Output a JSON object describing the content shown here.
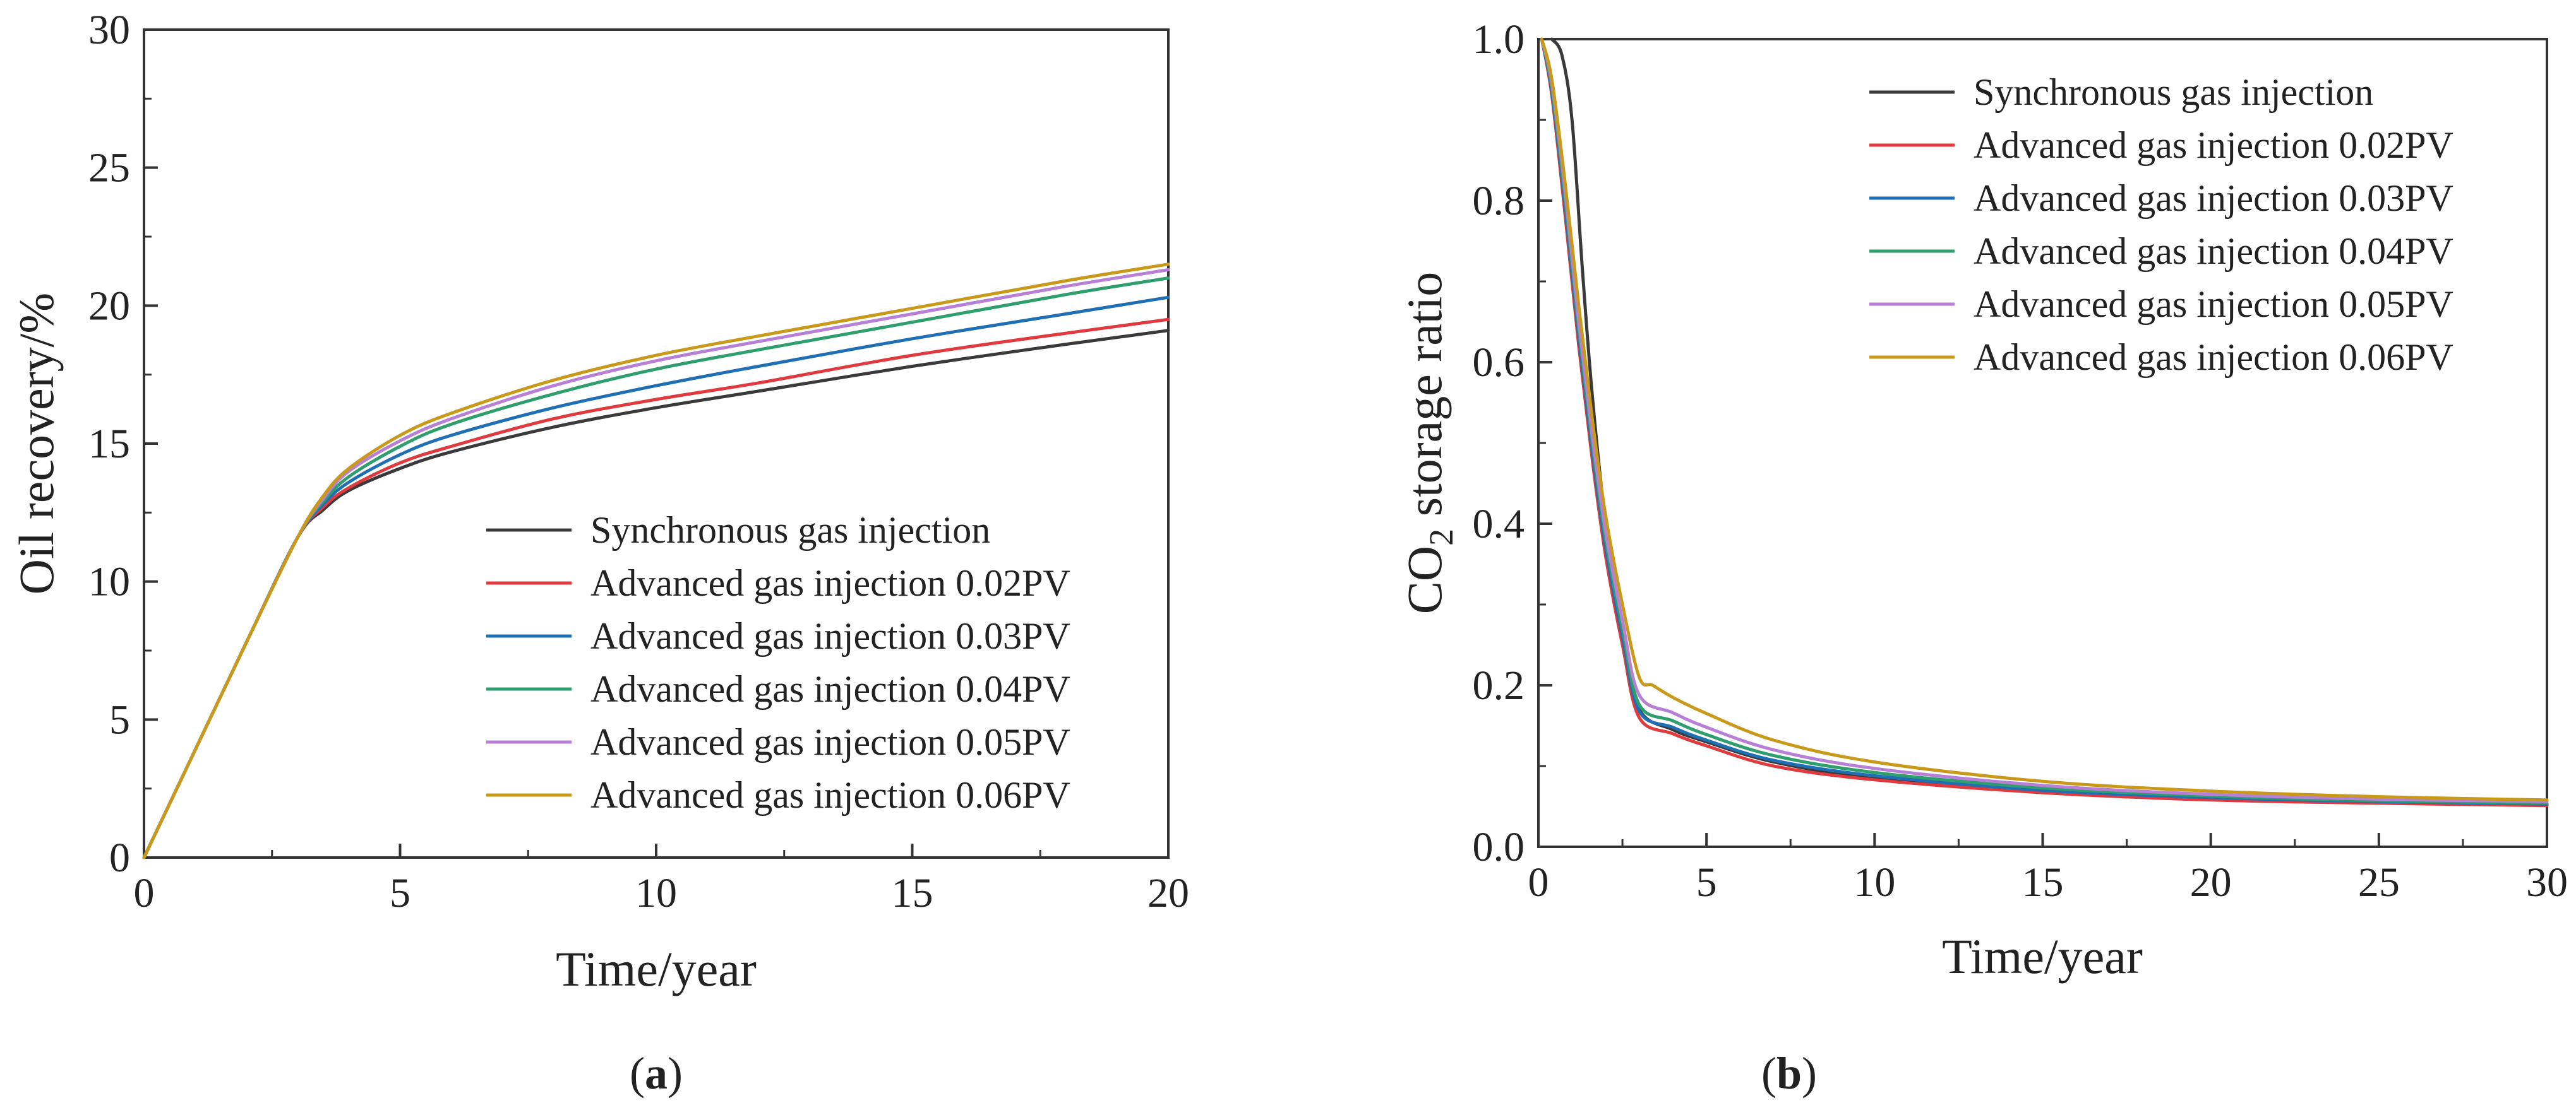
{
  "chart_data": [
    {
      "type": "line",
      "panel_label": "(a)",
      "panel_letter": "a",
      "xlabel": "Time/year",
      "ylabel": "Oil recovery/%",
      "xlim": [
        0,
        20
      ],
      "ylim": [
        0,
        30
      ],
      "xticks": [
        0,
        5,
        10,
        15,
        20
      ],
      "yticks": [
        0,
        5,
        10,
        15,
        20,
        25,
        30
      ],
      "legend_position": "bottom-right",
      "grid": false,
      "series": [
        {
          "name": "Synchronous gas injection",
          "color": "#3a3a3a",
          "x": [
            0,
            1,
            2,
            3,
            3.5,
            4,
            5,
            6,
            8,
            10,
            12,
            15,
            18,
            20
          ],
          "y": [
            0,
            3.9,
            7.8,
            11.6,
            12.6,
            13.3,
            14.1,
            14.7,
            15.6,
            16.3,
            16.9,
            17.8,
            18.6,
            19.1
          ]
        },
        {
          "name": "Advanced gas injection 0.02PV",
          "color": "#e0393e",
          "x": [
            0,
            1,
            2,
            3,
            3.5,
            4,
            5,
            6,
            8,
            10,
            12,
            15,
            18,
            20
          ],
          "y": [
            0,
            3.9,
            7.8,
            11.6,
            12.7,
            13.4,
            14.3,
            14.9,
            15.9,
            16.6,
            17.2,
            18.2,
            19.0,
            19.5
          ]
        },
        {
          "name": "Advanced gas injection 0.03PV",
          "color": "#1f6fb4",
          "x": [
            0,
            1,
            2,
            3,
            3.5,
            4,
            5,
            6,
            8,
            10,
            12,
            15,
            18,
            20
          ],
          "y": [
            0,
            3.9,
            7.8,
            11.6,
            12.8,
            13.6,
            14.6,
            15.3,
            16.3,
            17.1,
            17.8,
            18.8,
            19.7,
            20.3
          ]
        },
        {
          "name": "Advanced gas injection 0.04PV",
          "color": "#2e9e6e",
          "x": [
            0,
            1,
            2,
            3,
            3.5,
            4,
            5,
            6,
            8,
            10,
            12,
            15,
            18,
            20
          ],
          "y": [
            0,
            3.9,
            7.8,
            11.6,
            12.9,
            13.8,
            14.9,
            15.7,
            16.8,
            17.7,
            18.4,
            19.4,
            20.4,
            21.0
          ]
        },
        {
          "name": "Advanced gas injection 0.05PV",
          "color": "#b77fd6",
          "x": [
            0,
            1,
            2,
            3,
            3.5,
            4,
            5,
            6,
            8,
            10,
            12,
            15,
            18,
            20
          ],
          "y": [
            0,
            3.9,
            7.8,
            11.6,
            13.0,
            14.0,
            15.1,
            15.9,
            17.1,
            18.0,
            18.7,
            19.7,
            20.7,
            21.3
          ]
        },
        {
          "name": "Advanced gas injection 0.06PV",
          "color": "#c99a1a",
          "x": [
            0,
            1,
            2,
            3,
            3.5,
            4,
            5,
            6,
            8,
            10,
            12,
            15,
            18,
            20
          ],
          "y": [
            0,
            3.9,
            7.8,
            11.6,
            13.1,
            14.1,
            15.3,
            16.1,
            17.3,
            18.2,
            18.9,
            19.9,
            20.9,
            21.5
          ]
        }
      ]
    },
    {
      "type": "line",
      "panel_label": "(b)",
      "panel_letter": "b",
      "xlabel": "Time/year",
      "ylabel_prefix": "CO",
      "ylabel_sub": "2",
      "ylabel_suffix": " storage ratio",
      "xlim": [
        0,
        30
      ],
      "ylim": [
        0,
        1.0
      ],
      "xticks": [
        0,
        5,
        10,
        15,
        20,
        25,
        30
      ],
      "yticks": [
        0.0,
        0.2,
        0.4,
        0.6,
        0.8,
        1.0
      ],
      "ytick_labels": [
        "0.0",
        "0.2",
        "0.4",
        "0.6",
        "0.8",
        "1.0"
      ],
      "legend_position": "top-right",
      "grid": false,
      "series": [
        {
          "name": "Synchronous gas injection",
          "color": "#3a3a3a",
          "x": [
            0.4,
            0.7,
            1.0,
            1.3,
            1.6,
            2.0,
            2.5,
            3.0,
            4,
            5,
            7,
            10,
            15,
            20,
            25,
            30
          ],
          "y": [
            1.0,
            0.98,
            0.9,
            0.72,
            0.56,
            0.4,
            0.26,
            0.17,
            0.145,
            0.13,
            0.105,
            0.085,
            0.068,
            0.06,
            0.055,
            0.052
          ]
        },
        {
          "name": "Advanced gas injection 0.02PV",
          "color": "#e0393e",
          "x": [
            0.1,
            0.4,
            0.8,
            1.2,
            1.6,
            2.0,
            2.5,
            3.0,
            4,
            5,
            7,
            10,
            15,
            20,
            25,
            30
          ],
          "y": [
            1.0,
            0.93,
            0.78,
            0.62,
            0.48,
            0.36,
            0.25,
            0.16,
            0.14,
            0.125,
            0.1,
            0.083,
            0.067,
            0.058,
            0.054,
            0.051
          ]
        },
        {
          "name": "Advanced gas injection 0.03PV",
          "color": "#1f6fb4",
          "x": [
            0.1,
            0.4,
            0.8,
            1.2,
            1.6,
            2.0,
            2.5,
            3.0,
            4,
            5,
            7,
            10,
            15,
            20,
            25,
            30
          ],
          "y": [
            1.0,
            0.935,
            0.79,
            0.63,
            0.49,
            0.37,
            0.26,
            0.168,
            0.148,
            0.132,
            0.107,
            0.088,
            0.07,
            0.061,
            0.056,
            0.053
          ]
        },
        {
          "name": "Advanced gas injection 0.04PV",
          "color": "#2e9e6e",
          "x": [
            0.1,
            0.4,
            0.8,
            1.2,
            1.6,
            2.0,
            2.5,
            3.0,
            4,
            5,
            7,
            10,
            15,
            20,
            25,
            30
          ],
          "y": [
            1.0,
            0.94,
            0.8,
            0.64,
            0.5,
            0.38,
            0.27,
            0.176,
            0.156,
            0.139,
            0.113,
            0.092,
            0.073,
            0.063,
            0.057,
            0.054
          ]
        },
        {
          "name": "Advanced gas injection 0.05PV",
          "color": "#b77fd6",
          "x": [
            0.1,
            0.4,
            0.8,
            1.2,
            1.6,
            2.0,
            2.5,
            3.0,
            4,
            5,
            7,
            10,
            15,
            20,
            25,
            30
          ],
          "y": [
            1.0,
            0.945,
            0.81,
            0.65,
            0.51,
            0.39,
            0.28,
            0.188,
            0.166,
            0.148,
            0.12,
            0.097,
            0.076,
            0.065,
            0.059,
            0.056
          ]
        },
        {
          "name": "Advanced gas injection 0.06PV",
          "color": "#c99a1a",
          "x": [
            0.1,
            0.4,
            0.8,
            1.2,
            1.6,
            2.0,
            2.5,
            3.0,
            3.4,
            4,
            5,
            7,
            10,
            15,
            20,
            25,
            30
          ],
          "y": [
            1.0,
            0.95,
            0.82,
            0.67,
            0.53,
            0.41,
            0.3,
            0.21,
            0.2,
            0.185,
            0.165,
            0.132,
            0.105,
            0.081,
            0.069,
            0.062,
            0.058
          ]
        }
      ]
    }
  ]
}
